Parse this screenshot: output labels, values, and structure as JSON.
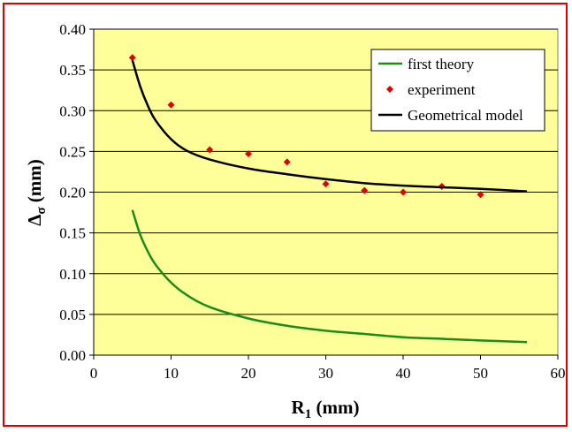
{
  "chart_data": {
    "type": "line",
    "title": "",
    "xlabel": {
      "main": "R",
      "subscript": "1",
      "unit": " (mm)"
    },
    "ylabel": {
      "main": "Δ",
      "subscript": "σ",
      "unit": " (mm)"
    },
    "xlim": [
      0,
      60
    ],
    "ylim": [
      0,
      0.4
    ],
    "x_ticks": [
      "0",
      "10",
      "20",
      "30",
      "40",
      "50",
      "60"
    ],
    "y_ticks": [
      "0.00",
      "0.05",
      "0.10",
      "0.15",
      "0.20",
      "0.25",
      "0.30",
      "0.35",
      "0.40"
    ],
    "grid": "horizontal",
    "legend_position": "top-right",
    "series": [
      {
        "name": "first theory",
        "kind": "line",
        "color": "#1a8c1a",
        "x": [
          5,
          6,
          7,
          8,
          10,
          12,
          15,
          20,
          25,
          30,
          35,
          40,
          45,
          50,
          56
        ],
        "y": [
          0.178,
          0.148,
          0.127,
          0.111,
          0.089,
          0.074,
          0.059,
          0.045,
          0.036,
          0.03,
          0.026,
          0.022,
          0.02,
          0.018,
          0.016
        ]
      },
      {
        "name": "experiment",
        "kind": "scatter",
        "color": "#e00000",
        "x": [
          5,
          10,
          15,
          20,
          25,
          30,
          35,
          40,
          45,
          50
        ],
        "y": [
          0.365,
          0.307,
          0.252,
          0.247,
          0.237,
          0.21,
          0.202,
          0.2,
          0.207,
          0.197
        ]
      },
      {
        "name": "Geometrical model",
        "kind": "line",
        "color": "#000000",
        "x": [
          5,
          6,
          7,
          8,
          10,
          12,
          15,
          20,
          25,
          30,
          35,
          40,
          45,
          50,
          56
        ],
        "y": [
          0.362,
          0.33,
          0.306,
          0.288,
          0.265,
          0.251,
          0.24,
          0.229,
          0.222,
          0.216,
          0.211,
          0.208,
          0.206,
          0.204,
          0.201
        ]
      }
    ]
  },
  "style": {
    "plot_background": "#ffff99",
    "frame_color": "#e00000",
    "grid_color": "#000000"
  }
}
